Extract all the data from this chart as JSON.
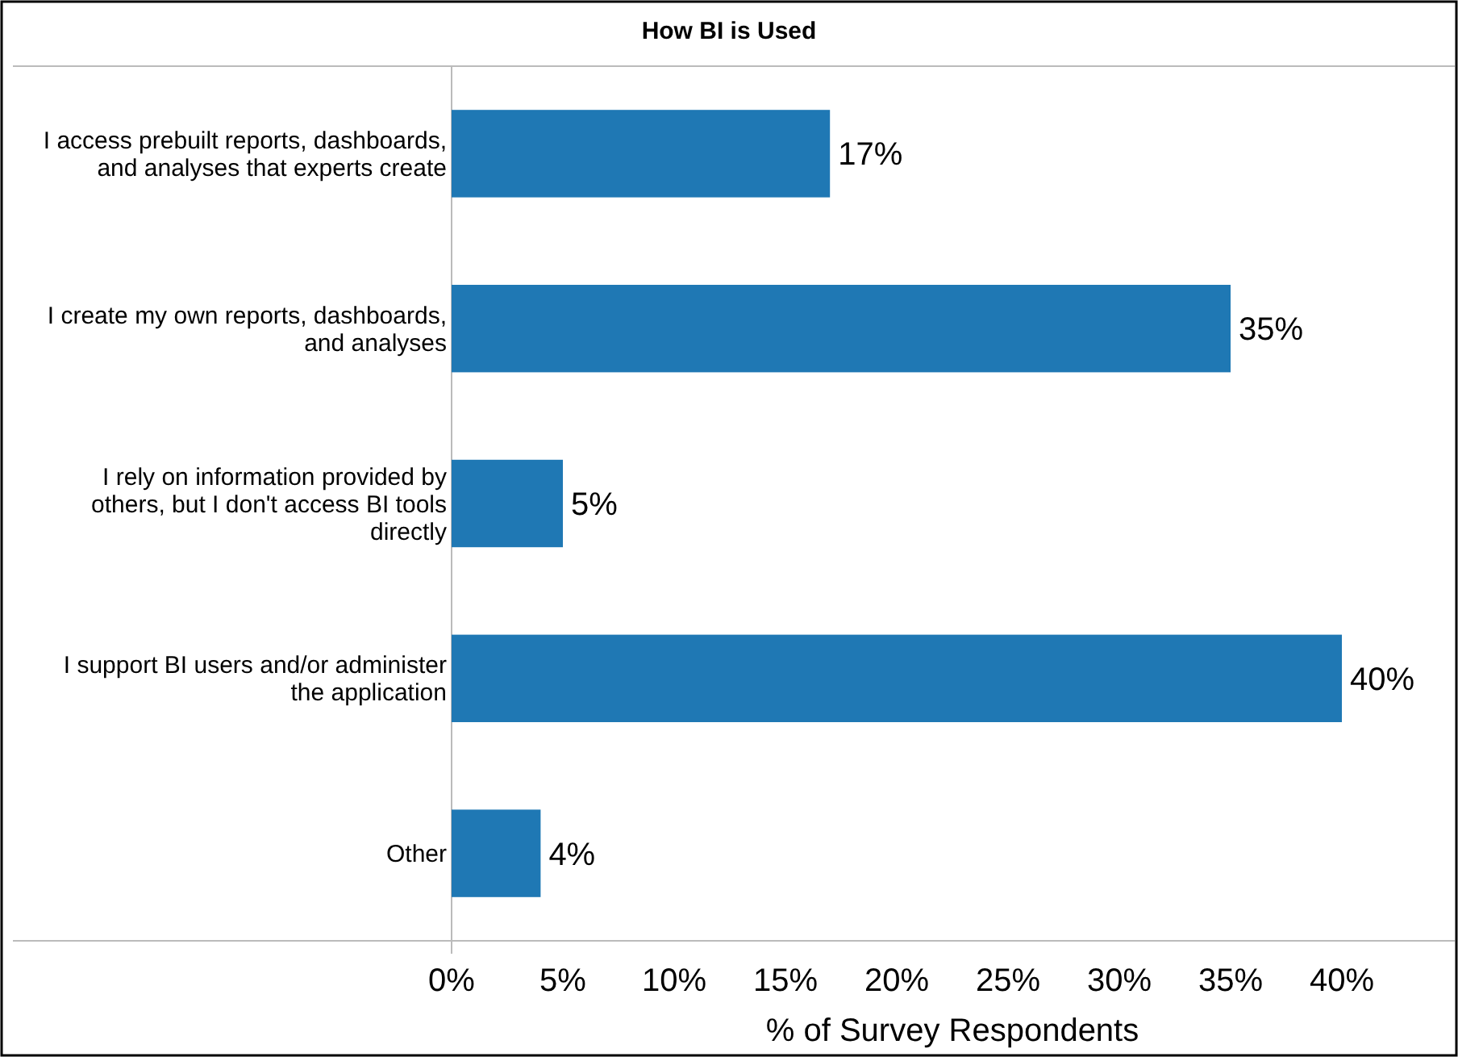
{
  "chart_data": {
    "type": "bar",
    "orientation": "horizontal",
    "title": "How BI is Used",
    "xlabel": "% of Survey Respondents",
    "categories": [
      "I access prebuilt reports, dashboards, and analyses that experts create",
      "I create my own reports, dashboards, and analyses",
      "I rely on information provided by others, but I don't access BI tools directly",
      "I support BI users and/or administer the application",
      "Other"
    ],
    "values": [
      17,
      35,
      5,
      40,
      4
    ],
    "value_labels": [
      "17%",
      "35%",
      "5%",
      "40%",
      "4%"
    ],
    "color": "#1f78b4",
    "xlim": [
      0,
      45
    ],
    "xticks": [
      {
        "value": 0,
        "label": "0%"
      },
      {
        "value": 5,
        "label": "5%"
      },
      {
        "value": 10,
        "label": "10%"
      },
      {
        "value": 15,
        "label": "15%"
      },
      {
        "value": 20,
        "label": "20%"
      },
      {
        "value": 25,
        "label": "25%"
      },
      {
        "value": 30,
        "label": "30%"
      },
      {
        "value": 35,
        "label": "35%"
      },
      {
        "value": 40,
        "label": "40%"
      }
    ],
    "grid": false
  }
}
